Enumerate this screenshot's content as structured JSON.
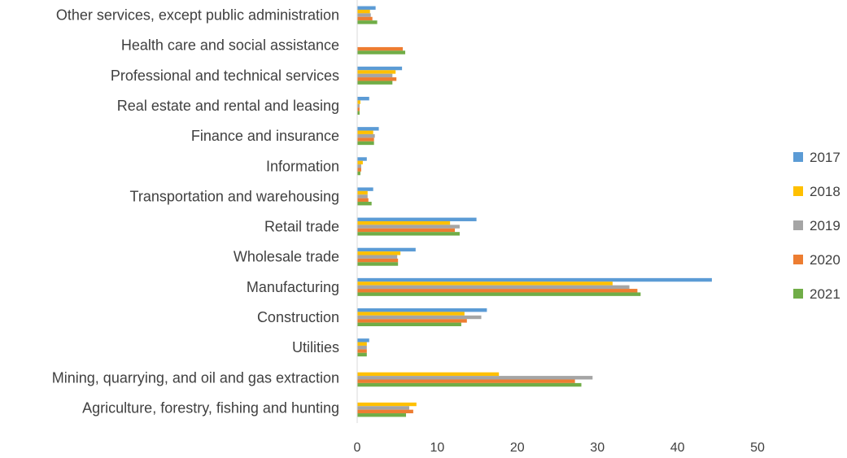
{
  "chart_data": {
    "type": "bar",
    "orientation": "horizontal",
    "title": "",
    "xlabel": "",
    "ylabel": "",
    "xlim": [
      0,
      50
    ],
    "x_ticks": [
      "0",
      "10",
      "20",
      "30",
      "40",
      "50"
    ],
    "grid": false,
    "legend_position": "right",
    "categories": [
      "Agriculture, forestry, fishing and hunting",
      "Mining, quarrying, and oil and gas extraction",
      "Utilities",
      "Construction",
      "Manufacturing",
      "Wholesale trade",
      "Retail trade",
      "Transportation and warehousing",
      "Information",
      "Finance and insurance",
      "Real estate and rental and leasing",
      "Professional and technical services",
      "Health care and social assistance",
      "Other services, except public administration"
    ],
    "series": [
      {
        "name": "2017",
        "color": "#5b9bd5",
        "values": [
          0,
          0,
          1.5,
          16.2,
          44.3,
          7.3,
          14.9,
          2.0,
          1.2,
          2.7,
          1.5,
          5.6,
          0,
          2.3
        ]
      },
      {
        "name": "2018",
        "color": "#ffc000",
        "values": [
          7.4,
          17.7,
          1.2,
          13.4,
          31.9,
          5.4,
          11.6,
          1.3,
          0.7,
          2.0,
          0.4,
          4.8,
          0,
          1.6
        ]
      },
      {
        "name": "2019",
        "color": "#a5a5a5",
        "values": [
          6.5,
          29.4,
          1.2,
          15.5,
          34.0,
          5.0,
          12.8,
          1.3,
          0.5,
          2.2,
          0.3,
          4.4,
          0,
          1.7
        ]
      },
      {
        "name": "2020",
        "color": "#ed7d31",
        "values": [
          7.0,
          27.2,
          1.2,
          13.7,
          35.0,
          5.1,
          12.2,
          1.4,
          0.5,
          2.1,
          0.3,
          4.9,
          5.7,
          1.9
        ]
      },
      {
        "name": "2021",
        "color": "#70ad47",
        "values": [
          6.1,
          28.0,
          1.2,
          13.0,
          35.4,
          5.1,
          12.8,
          1.8,
          0.4,
          2.1,
          0.3,
          4.4,
          6.0,
          2.5
        ]
      }
    ]
  }
}
